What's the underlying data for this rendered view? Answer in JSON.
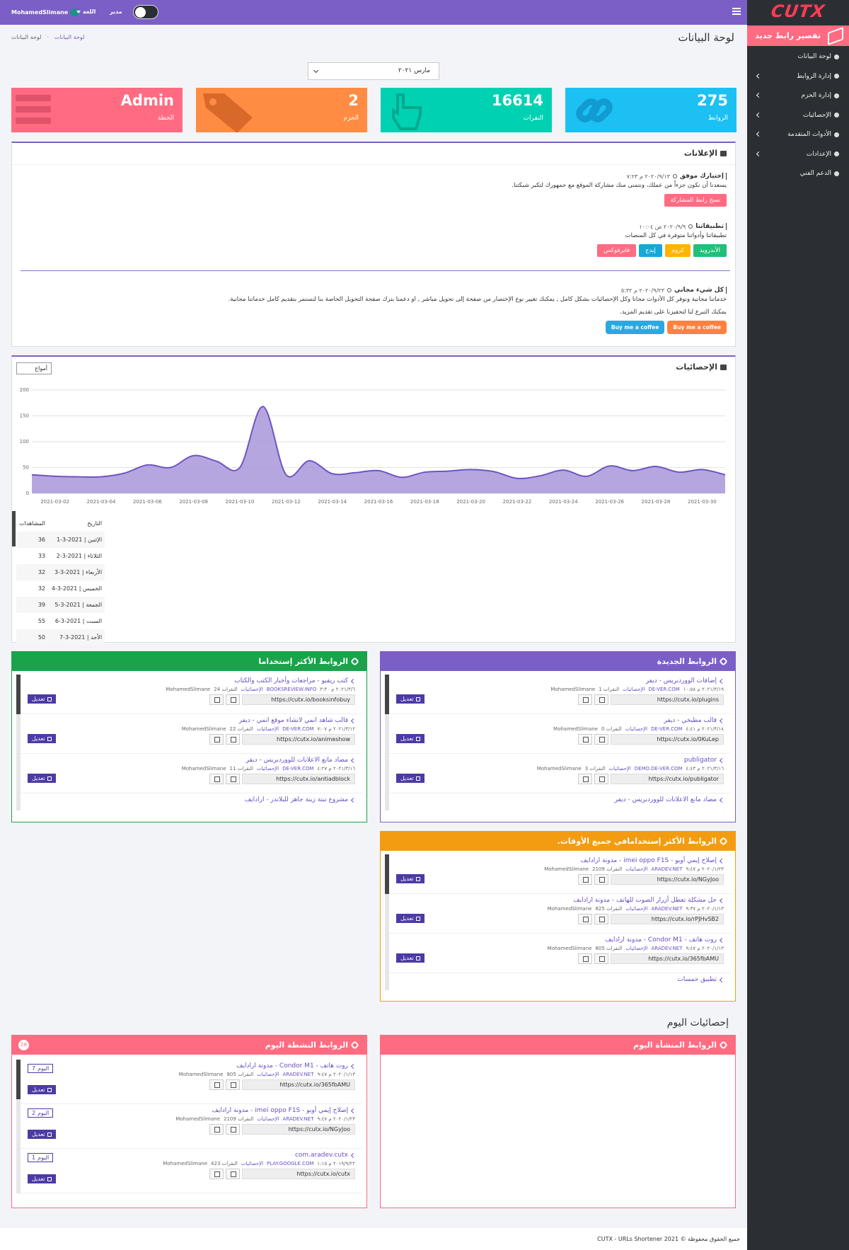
{
  "header": {
    "user": "MohamedSlimane",
    "language": "اللغة",
    "role": "مدير"
  },
  "sidebar": {
    "logo": "CUTX",
    "new_link": "تقصير رابط جديد",
    "menu": [
      "لوحة البيانات",
      "إدارة الروابط",
      "إدارة الحزم",
      "الإحصائيات",
      "الأدوات المتقدمة",
      "الإعدادات",
      "الدعم الفني"
    ]
  },
  "page": {
    "title": "لوحة البيانات",
    "breadcrumb": [
      "لوحة البيانات",
      "لوحة البيانات"
    ],
    "month": "مارس ٢٠٢١"
  },
  "cards": [
    {
      "value": 275,
      "label": "الروابط"
    },
    {
      "value": 16614,
      "label": "النقرات"
    },
    {
      "value": 2,
      "label": "الحزم"
    },
    {
      "value": "Admin",
      "label": "الخطة"
    }
  ],
  "announcements": {
    "title": "الإعلانات",
    "items": [
      {
        "title": "إختيارك موفق",
        "date": "٢٠٢٠/٩/١٣ م ٧:٢٣",
        "text": "يسعدنا أن نكون جزءاً من عملك، ونتمنى منك مشاركة الموقع مع جمهورك لتكبر شبكتنا.",
        "buttons": [
          "نسخ رابط المشاركة"
        ]
      },
      {
        "title": "تطبيقاتنا",
        "date": "٢٠٢٠/٩/٩ ص ١٠:٠٤",
        "text": "تطبيقاتنا وأدواتنا متوفرة في كل المنصات",
        "buttons": [
          "الأندرويد",
          "كروم",
          "إيدج",
          "فايرفوكس"
        ]
      },
      {
        "title": "كل شيء مجاني",
        "date": "٢٠٢٠/٩/٢٣ م ٥:٣٢",
        "text": "خدماتنا مجانية ونوفر كل الأدوات مجانا وكل الإحصائيات بشكل كامل , يمكنك تغيير نوع الإختصار من صفحة إلى تحويل مباشر , او دعمنا بترك صفحة التحويل الخاصة بنا لنستمر بتقديم كامل خدماتنا مجانية.",
        "text2": "يمكنك التبرع لنا لتحفيزنا على تقديم المزيد.",
        "buttons": [
          "Buy me a coffee",
          "Buy me a coffee"
        ]
      }
    ]
  },
  "chart_data": {
    "type": "area",
    "title": "الإحصائيات",
    "select": "أمواج",
    "color": "#a996da",
    "line_color": "#6f55c0",
    "grid": true,
    "categories": [
      null,
      "2021-03-02",
      null,
      "2021-03-04",
      null,
      "2021-03-06",
      null,
      "2021-03-08",
      null,
      "2021-03-10",
      null,
      "2021-03-12",
      null,
      "2021-03-14",
      null,
      "2021-03-16",
      null,
      "2021-03-18",
      null,
      "2021-03-20",
      null,
      "2021-03-22",
      null,
      "2021-03-24",
      null,
      "2021-03-26",
      null,
      "2021-03-28",
      null,
      "2021-03-30",
      null
    ],
    "values": [
      36,
      33,
      32,
      32,
      39,
      55,
      50,
      73,
      62,
      50,
      168,
      36,
      63,
      38,
      40,
      44,
      31,
      41,
      43,
      46,
      42,
      29,
      34,
      45,
      33,
      53,
      44,
      52,
      41,
      46,
      36
    ],
    "ylim": [
      0,
      200
    ],
    "yticks": [
      0,
      50,
      100,
      150,
      200
    ]
  },
  "table": {
    "headers": [
      "التاريخ",
      "المشاهدات"
    ],
    "rows": [
      [
        "الإثنين | 2021-3-1",
        36
      ],
      [
        "الثلاثاء | 2021-3-2",
        33
      ],
      [
        "الأربعاء | 2021-3-3",
        32
      ],
      [
        "الخميس | 2021-3-4",
        32
      ],
      [
        "الجمعة | 2021-3-5",
        39
      ],
      [
        "السبت | 2021-3-6",
        55
      ],
      [
        "الأحد | 2021-3-7",
        50
      ]
    ]
  },
  "labels": {
    "stats": "الإحصائيات",
    "clicks": "النقرات",
    "edit": "تعديل",
    "today": "اليوم"
  },
  "lists": {
    "new": {
      "title": "الروابط الجديدة",
      "items": [
        {
          "title": "إضافات الووردبريس - ديفر",
          "date": "٢٠٢١/٣/١٩ م ١٠:٥٨",
          "domain": "DE-VER.COM",
          "clicks": 1,
          "user": "MohamedSlimane",
          "url": "https://cutx.io/plugins"
        },
        {
          "title": "قالب مطبخي - ديفر",
          "date": "٢٠٢١/٣/١٨ م ٤:٤١",
          "domain": "DE-VER.COM",
          "clicks": 0,
          "user": "MohamedSlimane",
          "url": "https://cutx.io/0KuLep"
        },
        {
          "title": "publigator",
          "date": "٢٠٢١/٣/١٦ م ٤:٤٣",
          "domain": "DEMO.DE-VER.COM",
          "clicks": 3,
          "user": "MohamedSlimane",
          "url": "https://cutx.io/publigator"
        },
        {
          "title": "مضاد مانع الاعلانات للووردبريس - ديفر"
        }
      ]
    },
    "most_used": {
      "title": "الروابط الأكثر إستخداما",
      "items": [
        {
          "title": "كتب ريفيو - مراجعات وأخبار الكتب والكتاب",
          "date": "٢٠٢١/٣/٦ م ٣:٣٠",
          "domain": "BOOKSREVIEW.INFO",
          "clicks": 24,
          "user": "MohamedSlimane",
          "url": "https://cutx.io/booksinfobuy"
        },
        {
          "title": "قالب شاهد انمي لانشاء موقع انمي - ديفر",
          "date": "٢٠٢١/٣/١٢ م ٧:٠٧",
          "domain": "DE-VER.COM",
          "clicks": 22,
          "user": "MohamedSlimane",
          "url": "https://cutx.io/animeshow"
        },
        {
          "title": "مضاد مانع الاعلانات للووردبريس - ديفر",
          "date": "٢٠٢١/٣/١٦ م ٤:٢٧",
          "domain": "DE-VER.COM",
          "clicks": 11,
          "user": "MohamedSlimane",
          "url": "https://cutx.io/antiadblock"
        },
        {
          "title": "مشروع نبتة زينة جاهز للبلاندر - ارادايف"
        }
      ]
    },
    "all_time": {
      "title": "الروابط الأكثر إستخدامافي جميع الأوقات.",
      "items": [
        {
          "title": "إصلاح إيمي أوبو - imei oppo F1S - مدونة ارادايف",
          "date": "٢٠٢٠/١/٢٣ م ٩:٤٧",
          "domain": "ARADEV.NET",
          "clicks": 2109,
          "user": "MohamedSlimane",
          "url": "https://cutx.io/NGyJoo"
        },
        {
          "title": "حل مشكلة تعطل أزرار الصوت للهاتف - مدونة ارادايف",
          "date": "٢٠٢٠/١/١٣ م ٩:٣٧",
          "domain": "ARADEV.NET",
          "clicks": 825,
          "user": "MohamedSlimane",
          "url": "https://cutx.io/rPJHvSB2"
        },
        {
          "title": "روت هاتف - Condor M1 - مدونة ارادايف",
          "date": "٢٠٢٠/١/١٣ م ٩:٤٧",
          "domain": "ARADEV.NET",
          "clicks": 805,
          "user": "MohamedSlimane",
          "url": "https://cutx.io/365fbAMU"
        },
        {
          "title": "تطبيق حمسات"
        }
      ]
    },
    "today_title": "إحصائيات اليوم",
    "created_today": {
      "title": "الروابط المنشأة اليوم",
      "items": []
    },
    "active_today": {
      "title": "الروابط النشطة اليوم",
      "count": 28,
      "items": [
        {
          "title": "روت هاتف - Condor M1 - مدونة ارادايف",
          "today": 7,
          "date": "٢٠٢٠/١/١٣ م ٩:٤٧",
          "domain": "ARADEV.NET",
          "clicks": 805,
          "user": "MohamedSlimane",
          "url": "https://cutx.io/365fbAMU"
        },
        {
          "title": "إصلاح إيمي أوبو - imei oppo F1S - مدونة ارادايف",
          "today": 2,
          "date": "٢٠٢٠/١/٢٣ م ٩:٤٧",
          "domain": "ARADEV.NET",
          "clicks": 2109,
          "user": "MohamedSlimane",
          "url": "https://cutx.io/NGyJoo"
        },
        {
          "title": "com.aradev.cutx",
          "today": 1,
          "date": "٢٠١٩/٩/٢٢ م ١:١٥",
          "domain": "PLAY.GOOGLE.COM",
          "clicks": 423,
          "user": "MohamedSlimane",
          "url": "https://cutx.io/cutx"
        }
      ]
    }
  },
  "footer": "جميع الحقوق محفوظة © CUTX - URLs Shortener 2021"
}
